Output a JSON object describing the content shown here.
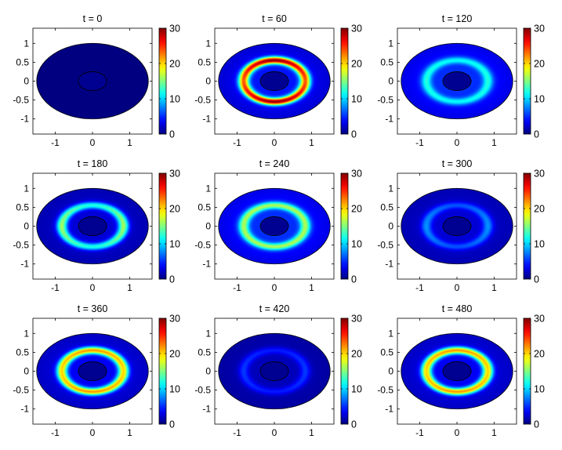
{
  "chart_data": {
    "type": "heatmap",
    "layout": "3x3 grid of elliptical field plots with individual colorbars",
    "colormap": "jet",
    "colorbar": {
      "range": [
        0,
        30
      ],
      "ticks": [
        "0",
        "10",
        "20",
        "30"
      ]
    },
    "x_ticks": [
      "-1",
      "0",
      "1"
    ],
    "x_tick_values": [
      -1,
      0,
      1
    ],
    "y_ticks": [
      "1",
      "0.5",
      "0",
      "-0.5",
      "-1"
    ],
    "y_tick_values": [
      1,
      0.5,
      0,
      -0.5,
      -1
    ],
    "xlim": [
      -1.6,
      1.6
    ],
    "ylim": [
      -1.4,
      1.4
    ],
    "domain": {
      "outer_ellipse": {
        "semi_x": 1.5,
        "semi_y": 1.0
      },
      "inner_ellipse": {
        "semi_x": 0.38,
        "semi_y": 0.25
      }
    },
    "panels": [
      {
        "title": "t = 0",
        "t": 0,
        "ring_inner_intensity": 0,
        "ring_outer_intensity": 0,
        "background_intensity": 0
      },
      {
        "title": "t = 60",
        "t": 60,
        "ring_inner_intensity": 20,
        "ring_outer_intensity": 26,
        "background_intensity": 5
      },
      {
        "title": "t = 120",
        "t": 120,
        "ring_inner_intensity": 8,
        "ring_outer_intensity": 7,
        "background_intensity": 6
      },
      {
        "title": "t = 180",
        "t": 180,
        "ring_inner_intensity": 14,
        "ring_outer_intensity": 10,
        "background_intensity": 3
      },
      {
        "title": "t = 240",
        "t": 240,
        "ring_inner_intensity": 12,
        "ring_outer_intensity": 12,
        "background_intensity": 6
      },
      {
        "title": "t = 300",
        "t": 300,
        "ring_inner_intensity": 6,
        "ring_outer_intensity": 4,
        "background_intensity": 3
      },
      {
        "title": "t = 360",
        "t": 360,
        "ring_inner_intensity": 17,
        "ring_outer_intensity": 19,
        "background_intensity": 4
      },
      {
        "title": "t = 420",
        "t": 420,
        "ring_inner_intensity": 4,
        "ring_outer_intensity": 3,
        "background_intensity": 2
      },
      {
        "title": "t = 480",
        "t": 480,
        "ring_inner_intensity": 17,
        "ring_outer_intensity": 19,
        "background_intensity": 4
      }
    ]
  }
}
